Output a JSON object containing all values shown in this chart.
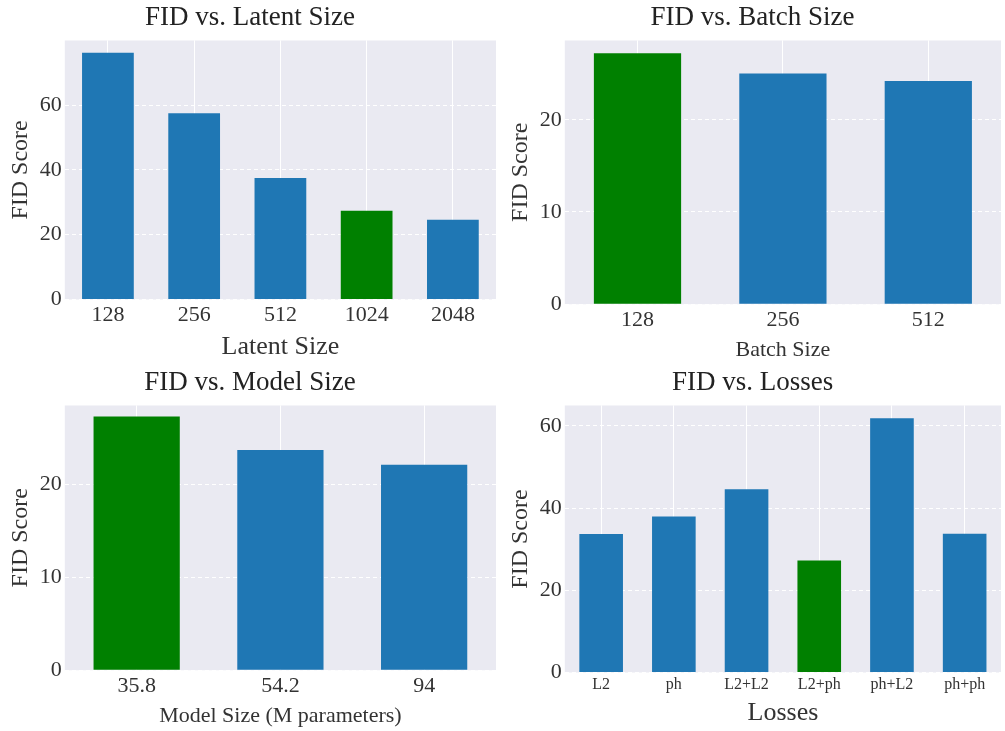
{
  "chart_data": [
    {
      "type": "bar",
      "title": "FID vs. Latent Size",
      "xlabel": "Latent Size",
      "ylabel": "FID Score",
      "categories": [
        "128",
        "256",
        "512",
        "1024",
        "2048"
      ],
      "values": [
        76.2,
        57.5,
        37.5,
        27.4,
        24.6
      ],
      "colors": [
        "#1f77b4",
        "#1f77b4",
        "#1f77b4",
        "#008000",
        "#1f77b4"
      ],
      "ylim": [
        0,
        80
      ],
      "yticks": [
        0,
        20,
        40,
        60
      ],
      "grid": true
    },
    {
      "type": "bar",
      "title": "FID vs. Batch Size",
      "xlabel": "Batch Size",
      "ylabel": "FID Score",
      "categories": [
        "128",
        "256",
        "512"
      ],
      "values": [
        27.2,
        25.0,
        24.2
      ],
      "colors": [
        "#008000",
        "#1f77b4",
        "#1f77b4"
      ],
      "ylim": [
        0,
        28.6
      ],
      "yticks": [
        0,
        10,
        20
      ],
      "grid": true
    },
    {
      "type": "bar",
      "title": "FID vs. Model Size",
      "xlabel": "Model Size (M parameters)",
      "ylabel": "FID Score",
      "categories": [
        "35.8",
        "54.2",
        "94"
      ],
      "values": [
        27.3,
        23.7,
        22.1
      ],
      "colors": [
        "#008000",
        "#1f77b4",
        "#1f77b4"
      ],
      "ylim": [
        0,
        28.5
      ],
      "yticks": [
        0,
        10,
        20
      ],
      "grid": true
    },
    {
      "type": "bar",
      "title": "FID vs. Losses",
      "xlabel": "Losses",
      "ylabel": "FID Score",
      "categories": [
        "L2",
        "ph",
        "L2+L2",
        "L2+ph",
        "ph+L2",
        "ph+ph"
      ],
      "values": [
        33.7,
        38.0,
        44.6,
        27.3,
        61.9,
        33.8
      ],
      "colors": [
        "#1f77b4",
        "#1f77b4",
        "#1f77b4",
        "#008000",
        "#1f77b4",
        "#1f77b4"
      ],
      "ylim": [
        0,
        65
      ],
      "yticks": [
        0,
        20,
        40,
        60
      ],
      "grid": true
    }
  ]
}
